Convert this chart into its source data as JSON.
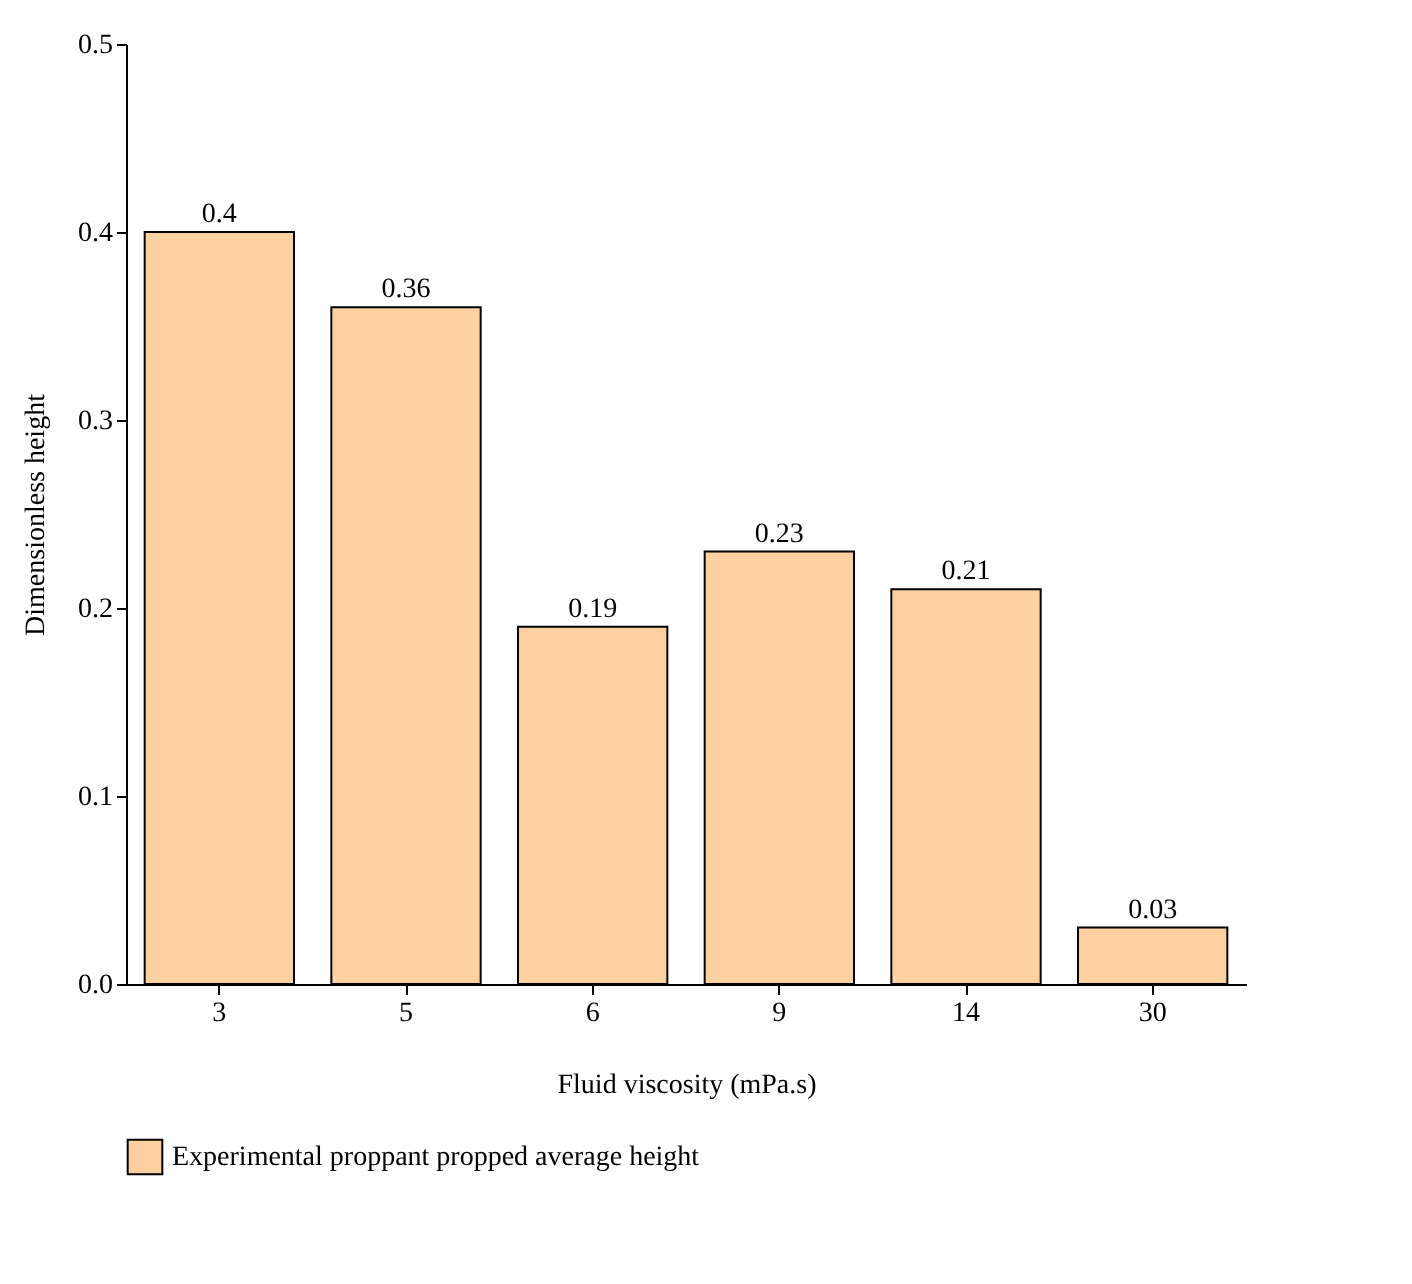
{
  "chart_data": {
    "type": "bar",
    "xlabel": "Fluid viscosity (mPa.s)",
    "ylabel": "Dimensionless height",
    "categories": [
      "3",
      "5",
      "6",
      "9",
      "14",
      "30"
    ],
    "series": [
      {
        "name": "Experimental proppant propped average height",
        "color": "#fdd0a2",
        "values": [
          0.4,
          0.36,
          0.19,
          0.23,
          0.21,
          0.03
        ]
      }
    ],
    "ylim": [
      0,
      0.5
    ],
    "yticks": [
      {
        "value": 0,
        "label": "0.0"
      },
      0.1,
      0.2,
      0.3,
      0.4,
      0.5
    ],
    "data_labels": true,
    "grid": false,
    "legend": "bottom"
  }
}
